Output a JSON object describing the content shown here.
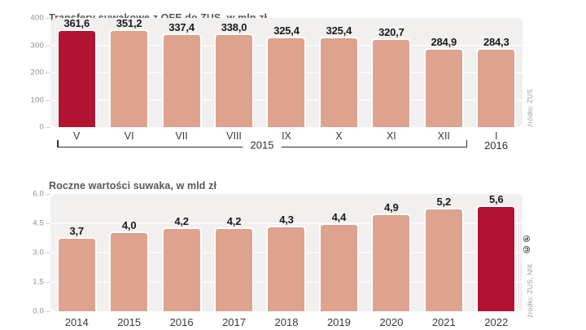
{
  "colors": {
    "highlight_bar": "#b11331",
    "bar": "#dda38e",
    "plot_background": "#f1f0ee",
    "gridline": "#fbfaf8",
    "title_text": "#58585c",
    "yaxis_text": "#8f8f8f",
    "xaxis_text": "#3a3a3c",
    "value_text": "#1a1a1a",
    "source_text": "#9c9c9c",
    "bracket": "#2f2f2f"
  },
  "chart_data": [
    {
      "type": "bar",
      "title": "Transfery suwakowe z OFE do ZUS, w mln zł",
      "categories": [
        "V",
        "VI",
        "VII",
        "VIII",
        "IX",
        "X",
        "XI",
        "XII",
        "I"
      ],
      "values": [
        361.6,
        351.2,
        337.4,
        338.0,
        325.4,
        325.4,
        320.7,
        284.9,
        284.3
      ],
      "value_labels": [
        "361,6",
        "351,2",
        "337,4",
        "338,0",
        "325,4",
        "325,4",
        "320,7",
        "284,9",
        "284,3"
      ],
      "highlight_index": 0,
      "ylim": [
        0,
        400
      ],
      "yticks": [
        {
          "value": 400,
          "label": "400"
        },
        {
          "value": 300,
          "label": "300"
        },
        {
          "value": 200,
          "label": "200"
        },
        {
          "value": 100,
          "label": "100"
        },
        {
          "value": 0,
          "label": "0"
        }
      ],
      "grid": true,
      "legend_position": "none",
      "x_group": {
        "label": "2015",
        "from_index": 0,
        "to_index": 7
      },
      "x_sublabel": {
        "text": "2016",
        "index": 8
      },
      "source": "źródło: ZUS"
    },
    {
      "type": "bar",
      "title": "Roczne wartości suwaka, w mld zł",
      "categories": [
        "2014",
        "2015",
        "2016",
        "2017",
        "2018",
        "2019",
        "2020",
        "2021",
        "2022"
      ],
      "values": [
        3.7,
        4.0,
        4.2,
        4.2,
        4.3,
        4.4,
        4.9,
        5.2,
        5.6
      ],
      "value_labels": [
        "3,7",
        "4,0",
        "4,2",
        "4,2",
        "4,3",
        "4,4",
        "4,9",
        "5,2",
        "5,6"
      ],
      "highlight_index": 8,
      "ylim": [
        0,
        6
      ],
      "yticks": [
        {
          "value": 6,
          "label": "6,0"
        },
        {
          "value": 4.5,
          "label": "4,5"
        },
        {
          "value": 3,
          "label": "3,0"
        },
        {
          "value": 1.5,
          "label": "1,5"
        },
        {
          "value": 0,
          "label": "0,0"
        }
      ],
      "grid": true,
      "legend_position": "none",
      "source": "źródło: ZUS, NIK",
      "license": "©℗"
    }
  ]
}
